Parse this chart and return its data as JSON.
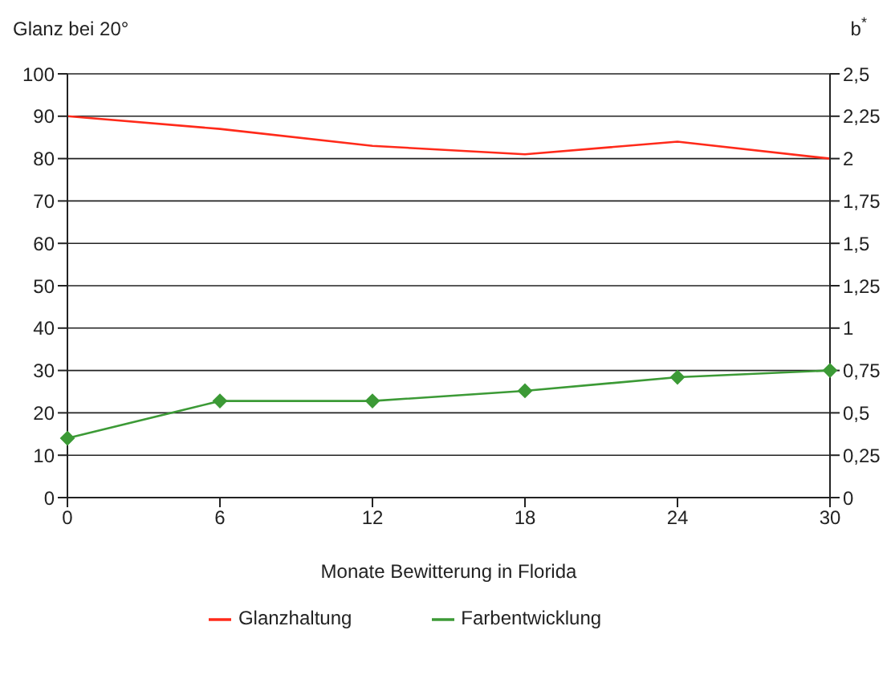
{
  "chart_data": {
    "type": "line",
    "ylabel": "Glanz bei 20°",
    "y2label": "b$^{*}$",
    "xlabel": "Monate Bewitterung in Florida",
    "categories": [
      "0",
      "6",
      "12",
      "18",
      "24",
      "30"
    ],
    "series": [
      {
        "name": "Glanzhaltung",
        "color": "#ff2a1a",
        "values": [
          90,
          87,
          83,
          81,
          84,
          80
        ],
        "marker": "none"
      },
      {
        "name": "Farbentwicklung",
        "color": "#3c9a36",
        "values": [
          0.35,
          0.57,
          0.57,
          0.63,
          0.71,
          0.75
        ],
        "axis": "y2",
        "marker": "diamond"
      }
    ],
    "ylim": [
      0,
      100
    ],
    "yticks": [
      0,
      10,
      20,
      30,
      40,
      50,
      60,
      70,
      80,
      90,
      100
    ],
    "y2lim": [
      0,
      2.5
    ],
    "y2ticks": [
      0,
      {
        "value": 0.25,
        "label": "0,25"
      },
      {
        "value": 0.5,
        "label": "0,5"
      },
      {
        "value": 0.75,
        "label": "0,75"
      },
      1,
      {
        "value": 1.25,
        "label": "1,25"
      },
      {
        "value": 1.5,
        "label": "1,5"
      },
      {
        "value": 1.75,
        "label": "1,75"
      },
      2,
      {
        "value": 2.25,
        "label": "2,25"
      },
      {
        "value": 2.5,
        "label": "2,5"
      }
    ],
    "grid": "y",
    "legend": "bottom",
    "line_style": "solid"
  }
}
